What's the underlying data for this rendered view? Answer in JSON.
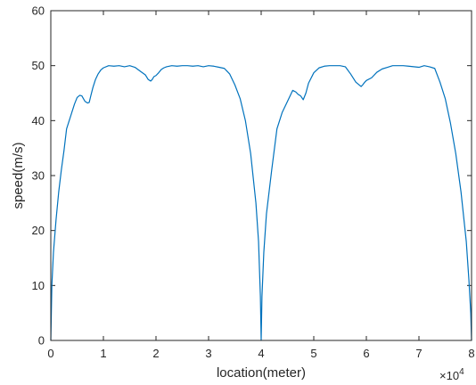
{
  "chart_data": {
    "type": "line",
    "title": "",
    "xlabel": "location(meter)",
    "ylabel": "speed(m/s)",
    "xlim": [
      0,
      80000
    ],
    "ylim": [
      0,
      60
    ],
    "grid": false,
    "legend": "none",
    "x_exponent_label": "×10",
    "x_exponent_power": "4",
    "x_ticks": [
      0,
      10000,
      20000,
      30000,
      40000,
      50000,
      60000,
      70000,
      80000
    ],
    "x_tick_labels": [
      "0",
      "1",
      "2",
      "3",
      "4",
      "5",
      "6",
      "7",
      "8"
    ],
    "y_ticks": [
      0,
      10,
      20,
      30,
      40,
      50,
      60
    ],
    "y_tick_labels": [
      "0",
      "10",
      "20",
      "30",
      "40",
      "50",
      "60"
    ],
    "series": [
      {
        "name": "",
        "color": "#0072BD",
        "x": [
          0,
          200,
          500,
          1000,
          1500,
          2000,
          2500,
          3000,
          3500,
          4000,
          4500,
          5000,
          5500,
          5900,
          6200,
          6500,
          7000,
          7300,
          7600,
          8000,
          8500,
          9000,
          9500,
          10000,
          11000,
          12000,
          13000,
          14000,
          15000,
          16000,
          17000,
          18000,
          18500,
          19000,
          19300,
          19600,
          20000,
          20500,
          21000,
          21500,
          22000,
          23000,
          24000,
          25000,
          26000,
          27000,
          28000,
          29000,
          30000,
          31000,
          32000,
          33000,
          34000,
          35000,
          36000,
          37000,
          38000,
          39000,
          39500,
          39850,
          40000,
          40150,
          40500,
          41000,
          42000,
          43000,
          44000,
          45000,
          46000,
          46600,
          47000,
          47500,
          48000,
          48500,
          49000,
          50000,
          51000,
          52000,
          53000,
          54000,
          55000,
          56000,
          57000,
          58000,
          59000,
          59300,
          59700,
          60000,
          61000,
          62000,
          63000,
          64000,
          65000,
          66000,
          67000,
          68000,
          69000,
          70000,
          71000,
          72000,
          73000,
          74000,
          75000,
          76000,
          77000,
          78000,
          79000,
          79500,
          79850,
          80000
        ],
        "y": [
          0,
          10,
          16,
          22,
          27,
          31,
          34.5,
          38.5,
          40,
          41.5,
          43,
          44.2,
          44.6,
          44.5,
          44,
          43.5,
          43.2,
          43.3,
          44.5,
          46,
          47.5,
          48.5,
          49.2,
          49.6,
          50,
          49.9,
          50,
          49.8,
          50,
          49.7,
          49,
          48.3,
          47.5,
          47.2,
          47.5,
          48,
          48.2,
          48.7,
          49.3,
          49.6,
          49.8,
          50,
          49.9,
          50,
          50,
          49.9,
          50,
          49.8,
          50,
          49.9,
          49.7,
          49.5,
          48.5,
          46.5,
          44,
          40,
          34,
          25,
          18,
          8,
          0,
          8,
          16,
          23,
          31,
          38.5,
          41.5,
          43.5,
          45.5,
          45.2,
          44.8,
          44.5,
          43.8,
          45,
          46.8,
          48.7,
          49.6,
          49.9,
          50,
          50,
          50,
          49.8,
          48.5,
          47,
          46.2,
          46.5,
          47,
          47.3,
          47.8,
          48.8,
          49.4,
          49.7,
          50,
          50,
          50,
          49.9,
          49.8,
          49.7,
          50,
          49.8,
          49.5,
          47,
          44,
          39.5,
          34,
          27,
          18,
          11,
          5,
          0
        ]
      }
    ]
  }
}
